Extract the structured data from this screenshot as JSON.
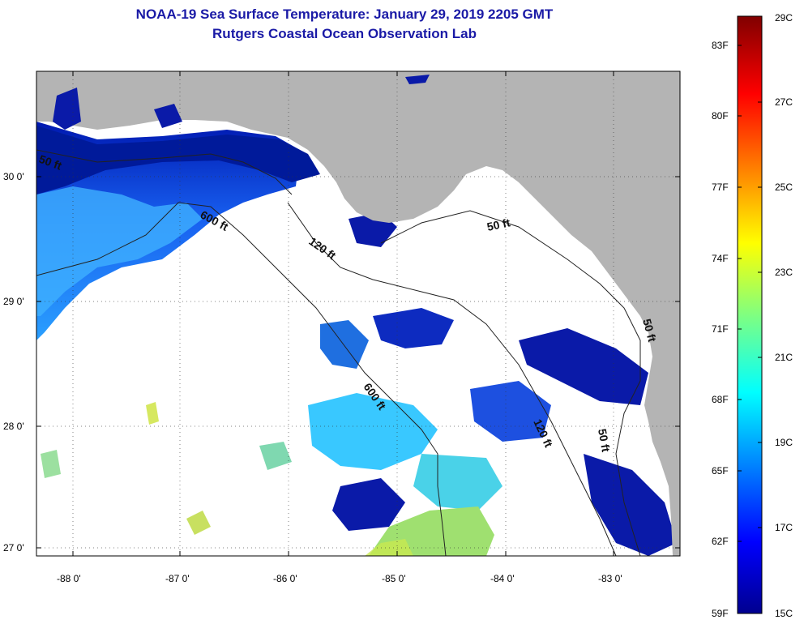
{
  "header": {
    "title": "NOAA-19 Sea Surface Temperature:  January 29, 2019 2205 GMT",
    "subtitle": "Rutgers Coastal Ocean Observation Lab"
  },
  "map": {
    "lat_labels": [
      "30 0'",
      "29 0'",
      "28 0'",
      "27 0'"
    ],
    "lon_labels": [
      "-88 0'",
      "-87 0'",
      "-86 0'",
      "-85 0'",
      "-84 0'",
      "-83 0'"
    ],
    "contour_labels": [
      "50 ft",
      "600 ft",
      "120 ft",
      "50 ft",
      "600 ft",
      "120 ft",
      "50 ft",
      "50 ft"
    ],
    "colors": {
      "land": "#b4b4b4",
      "ocean_cloud": "#ffffff",
      "cold_water": "#0000a0"
    }
  },
  "colorbar": {
    "fahrenheit_labels": [
      "83F",
      "80F",
      "77F",
      "74F",
      "71F",
      "68F",
      "65F",
      "62F",
      "59F"
    ],
    "celsius_labels": [
      "29C",
      "27C",
      "25C",
      "23C",
      "21C",
      "19C",
      "17C",
      "15C"
    ],
    "range_c": [
      15,
      29
    ],
    "range_f": [
      59,
      83
    ],
    "colormap": "jet"
  }
}
